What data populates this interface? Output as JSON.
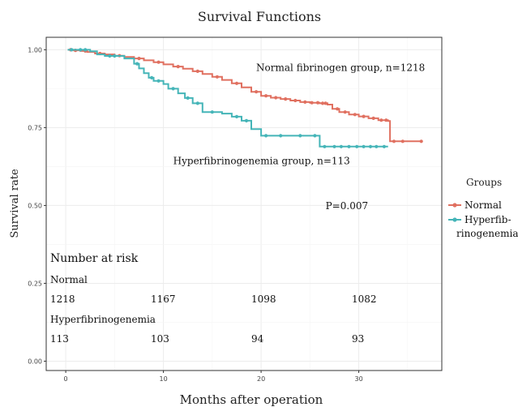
{
  "chart_data": {
    "type": "line",
    "title": "Survival Functions",
    "xlabel": "Months after operation",
    "ylabel": "Survival rate",
    "xlim": [
      -2,
      38.5
    ],
    "ylim": [
      -0.03,
      1.04
    ],
    "xticks": [
      0,
      10,
      20,
      30
    ],
    "yticks": [
      0.0,
      0.25,
      0.5,
      0.75,
      1.0
    ],
    "ytick_labels": [
      "0.00",
      "0.25",
      "0.50",
      "0.75",
      "1.00"
    ],
    "grid": true,
    "legend_title": "Groups",
    "legend_position": "right",
    "series": [
      {
        "name": "Normal",
        "color": "#e07060",
        "steps": [
          [
            0.2,
            1.0
          ],
          [
            0.8,
            0.998
          ],
          [
            1.5,
            0.996
          ],
          [
            2.2,
            0.993
          ],
          [
            3,
            0.988
          ],
          [
            4,
            0.985
          ],
          [
            5,
            0.981
          ],
          [
            6,
            0.977
          ],
          [
            7,
            0.972
          ],
          [
            8,
            0.966
          ],
          [
            9,
            0.96
          ],
          [
            10,
            0.953
          ],
          [
            11,
            0.946
          ],
          [
            12,
            0.939
          ],
          [
            13,
            0.931
          ],
          [
            14,
            0.922
          ],
          [
            15,
            0.913
          ],
          [
            16,
            0.903
          ],
          [
            17,
            0.892
          ],
          [
            18,
            0.879
          ],
          [
            19,
            0.865
          ],
          [
            20,
            0.852
          ],
          [
            21,
            0.846
          ],
          [
            22,
            0.842
          ],
          [
            23,
            0.837
          ],
          [
            24,
            0.832
          ],
          [
            25,
            0.83
          ],
          [
            26,
            0.828
          ],
          [
            26.8,
            0.824
          ],
          [
            27.3,
            0.81
          ],
          [
            28,
            0.8
          ],
          [
            29,
            0.792
          ],
          [
            30,
            0.786
          ],
          [
            31,
            0.78
          ],
          [
            32,
            0.774
          ],
          [
            33,
            0.771
          ],
          [
            33.2,
            0.706
          ],
          [
            36.5,
            0.706
          ]
        ],
        "censor_x": [
          0.5,
          1.0,
          2.0,
          3.5,
          5.5,
          7.5,
          9.5,
          11.5,
          13.5,
          15.5,
          17.5,
          19.5,
          20.5,
          21.5,
          22.5,
          23.5,
          24.5,
          25.2,
          25.8,
          26.3,
          26.6,
          27.8,
          28.6,
          29.6,
          30.5,
          31.5,
          32.3,
          32.8,
          33.6,
          34.5,
          36.4
        ]
      },
      {
        "name": "Hyperfibrinogenemia",
        "color": "#45b5b8",
        "steps": [
          [
            0.2,
            1.0
          ],
          [
            2.5,
            0.995
          ],
          [
            3.2,
            0.985
          ],
          [
            4.0,
            0.98
          ],
          [
            6.0,
            0.972
          ],
          [
            7.0,
            0.955
          ],
          [
            7.5,
            0.94
          ],
          [
            8.0,
            0.925
          ],
          [
            8.5,
            0.91
          ],
          [
            9.0,
            0.9
          ],
          [
            10.0,
            0.89
          ],
          [
            10.5,
            0.875
          ],
          [
            11.5,
            0.86
          ],
          [
            12.2,
            0.845
          ],
          [
            13.0,
            0.828
          ],
          [
            14.0,
            0.8
          ],
          [
            16.0,
            0.795
          ],
          [
            17.0,
            0.785
          ],
          [
            18.0,
            0.772
          ],
          [
            19.0,
            0.745
          ],
          [
            20.0,
            0.724
          ],
          [
            26.0,
            0.689
          ],
          [
            33.0,
            0.689
          ]
        ],
        "censor_x": [
          0.6,
          1.5,
          2.0,
          4.5,
          5.0,
          7.3,
          8.8,
          9.5,
          11.0,
          12.5,
          13.5,
          15.0,
          17.5,
          18.5,
          20.5,
          22.0,
          24.0,
          25.5,
          26.5,
          27.5,
          28.2,
          29.0,
          29.8,
          30.5,
          31.2,
          31.8,
          32.6
        ]
      }
    ],
    "annotations": [
      {
        "text": "Normal fibrinogen group, n=1218",
        "x": 19.5,
        "y": 0.932
      },
      {
        "text": "Hyperfibrinogenemia group, n=113",
        "x": 11,
        "y": 0.633
      },
      {
        "text": "P=0.007",
        "x": 26.6,
        "y": 0.488
      }
    ],
    "risk_table": {
      "title": "Number at risk",
      "groups": [
        {
          "name": "Normal",
          "counts": [
            "1218",
            "1167",
            "1098",
            "1082"
          ]
        },
        {
          "name": "Hyperfibrinogenemia",
          "counts": [
            "113",
            "103",
            "94",
            "93"
          ]
        }
      ]
    }
  },
  "legend_labels": [
    [
      "Normal"
    ],
    [
      "Hyperfib-",
      "rinogenemia"
    ]
  ]
}
